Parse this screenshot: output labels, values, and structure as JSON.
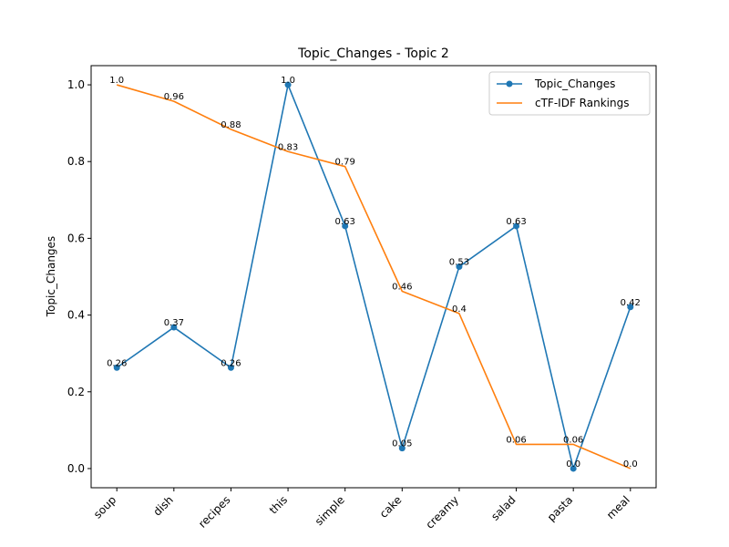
{
  "chart_data": {
    "type": "line",
    "title": "Topic_Changes - Topic 2",
    "xlabel": "",
    "ylabel": "Topic_Changes",
    "categories": [
      "soup",
      "dish",
      "recipes",
      "this",
      "simple",
      "cake",
      "creamy",
      "salad",
      "pasta",
      "meal"
    ],
    "ylim": [
      -0.05,
      1.05
    ],
    "yticks": [
      0.0,
      0.2,
      0.4,
      0.6,
      0.8,
      1.0
    ],
    "ytick_labels": [
      "0.0",
      "0.2",
      "0.4",
      "0.6",
      "0.8",
      "1.0"
    ],
    "grid": false,
    "legend_position": "top-right",
    "series": [
      {
        "name": "Topic_Changes",
        "color": "#1f77b4",
        "style": "solid-with-circle-markers",
        "values": [
          0.263,
          0.368,
          0.263,
          1.0,
          0.632,
          0.053,
          0.526,
          0.632,
          0.0,
          0.421
        ],
        "labels": [
          "0.26",
          "0.37",
          "0.26",
          "1.0",
          "0.63",
          "0.05",
          "0.53",
          "0.63",
          "0.0",
          "0.42"
        ]
      },
      {
        "name": "cTF-IDF Rankings",
        "color": "#ff7f0e",
        "style": "solid",
        "values": [
          1.0,
          0.957,
          0.884,
          0.826,
          0.787,
          0.462,
          0.404,
          0.063,
          0.063,
          0.0
        ],
        "labels": [
          "1.0",
          "0.96",
          "0.88",
          "0.83",
          "0.79",
          "0.46",
          "0.4",
          "0.06",
          "0.06",
          "0.0"
        ]
      }
    ]
  }
}
